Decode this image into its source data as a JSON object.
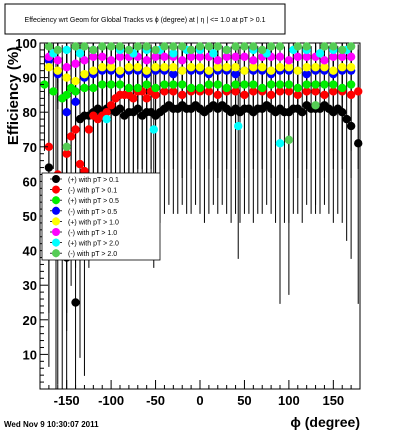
{
  "footer": {
    "timestamp": "Wed Nov  9 10:30:07 2011"
  },
  "chart_data": {
    "type": "scatter",
    "title": "Effeciency wrt Geom for Global Tracks vs ϕ (degree) at |  η | <= 1.0 at pT > 0.1",
    "xlabel": "ϕ (degree)",
    "ylabel": "Efficiency (%)",
    "xlim": [
      -180,
      180
    ],
    "ylim": [
      0,
      100
    ],
    "xticks": [
      -150,
      -100,
      -50,
      0,
      50,
      100,
      150
    ],
    "yticks": [
      10,
      20,
      30,
      40,
      50,
      60,
      70,
      80,
      90,
      100
    ],
    "grid": false,
    "legend_position": "middle-left",
    "series": [
      {
        "name": "(+) with pT > 0.1",
        "color": "#000000",
        "x": [
          -170,
          -162,
          -155,
          -150,
          -140,
          -135,
          -130,
          -125,
          -120,
          -115,
          -110,
          -105,
          -100,
          -95,
          -90,
          -85,
          -80,
          -75,
          -70,
          -65,
          -60,
          -55,
          -50,
          -45,
          -40,
          -35,
          -30,
          -25,
          -20,
          -15,
          -10,
          -5,
          0,
          5,
          10,
          15,
          20,
          25,
          30,
          35,
          40,
          45,
          50,
          55,
          60,
          65,
          70,
          75,
          80,
          85,
          90,
          95,
          100,
          105,
          110,
          115,
          120,
          125,
          130,
          135,
          140,
          145,
          150,
          155,
          160,
          165,
          170,
          178
        ],
        "y": [
          64,
          58,
          50,
          38,
          25,
          78,
          79,
          79,
          80,
          81,
          80,
          81,
          81,
          80,
          81,
          79,
          80,
          80,
          81,
          79,
          80,
          80,
          79,
          80,
          81,
          82,
          81,
          81,
          82,
          81,
          81,
          82,
          81,
          80,
          81,
          82,
          81,
          82,
          81,
          80,
          81,
          80,
          81,
          81,
          80,
          81,
          81,
          82,
          81,
          80,
          81,
          80,
          80,
          81,
          81,
          80,
          82,
          81,
          81,
          81,
          82,
          81,
          80,
          81,
          80,
          78,
          76,
          71
        ]
      },
      {
        "name": "(-) with pT > 0.1",
        "color": "#ff0000",
        "x": [
          -170,
          -160,
          -150,
          -145,
          -140,
          -135,
          -130,
          -125,
          -120,
          -115,
          -110,
          -105,
          -100,
          -95,
          -90,
          -85,
          -80,
          -75,
          -70,
          -65,
          -60,
          -55,
          -50,
          -40,
          -30,
          -20,
          -10,
          0,
          10,
          20,
          30,
          40,
          50,
          60,
          70,
          80,
          90,
          100,
          110,
          120,
          130,
          140,
          150,
          160,
          170,
          178
        ],
        "y": [
          70,
          62,
          68,
          73,
          75,
          65,
          63,
          75,
          79,
          78,
          79,
          80,
          82,
          84,
          85,
          85,
          85,
          84,
          86,
          86,
          84,
          86,
          85,
          86,
          86,
          85,
          86,
          86,
          86,
          85,
          86,
          86,
          85,
          86,
          86,
          85,
          86,
          86,
          85,
          86,
          86,
          85,
          86,
          86,
          85,
          86
        ]
      },
      {
        "name": "(+) with pT > 0.5",
        "color": "#00ee00",
        "x": [
          -175,
          -165,
          -155,
          -150,
          -145,
          -140,
          -130,
          -120,
          -110,
          -100,
          -90,
          -80,
          -70,
          -60,
          -50,
          -40,
          -30,
          -20,
          -10,
          0,
          10,
          20,
          30,
          40,
          50,
          60,
          70,
          80,
          90,
          100,
          110,
          120,
          130,
          140,
          150,
          160,
          170
        ],
        "y": [
          88,
          86,
          84,
          85,
          87,
          86,
          87,
          87,
          88,
          88,
          88,
          87,
          87,
          88,
          87,
          88,
          88,
          88,
          87,
          87,
          88,
          88,
          87,
          88,
          88,
          88,
          87,
          88,
          88,
          88,
          87,
          88,
          88,
          88,
          88,
          87,
          88
        ]
      },
      {
        "name": "(-) with pT > 0.5",
        "color": "#0000ff",
        "x": [
          -170,
          -160,
          -150,
          -140,
          -130,
          -120,
          -110,
          -100,
          -90,
          -80,
          -70,
          -60,
          -50,
          -40,
          -30,
          -20,
          -10,
          0,
          10,
          20,
          30,
          40,
          50,
          60,
          70,
          80,
          90,
          100,
          110,
          120,
          130,
          140,
          150,
          160,
          170
        ],
        "y": [
          95,
          91,
          80,
          83,
          90,
          91,
          92,
          92,
          91,
          92,
          92,
          91,
          92,
          92,
          91,
          92,
          92,
          92,
          91,
          92,
          92,
          91,
          92,
          92,
          92,
          91,
          92,
          92,
          92,
          91,
          92,
          92,
          91,
          92,
          92
        ]
      },
      {
        "name": "(+) with pT > 1.0",
        "color": "#ffff00",
        "x": [
          -170,
          -160,
          -150,
          -140,
          -130,
          -120,
          -110,
          -100,
          -90,
          -80,
          -70,
          -60,
          -50,
          -40,
          -30,
          -20,
          -10,
          0,
          10,
          20,
          30,
          40,
          50,
          60,
          70,
          80,
          90,
          100,
          110,
          120,
          130,
          140,
          150,
          160,
          170
        ],
        "y": [
          93,
          92,
          90,
          89,
          91,
          92,
          93,
          93,
          92,
          93,
          93,
          92,
          93,
          93,
          93,
          92,
          93,
          93,
          92,
          93,
          93,
          93,
          92,
          93,
          93,
          92,
          93,
          93,
          92,
          93,
          93,
          93,
          92,
          93,
          93
        ]
      },
      {
        "name": "(-) with pT > 1.0",
        "color": "#ff00ff",
        "x": [
          -170,
          -160,
          -150,
          -140,
          -130,
          -120,
          -110,
          -100,
          -90,
          -80,
          -70,
          -60,
          -50,
          -40,
          -30,
          -20,
          -10,
          0,
          10,
          20,
          30,
          40,
          50,
          60,
          70,
          80,
          90,
          100,
          110,
          120,
          130,
          140,
          150,
          160,
          170
        ],
        "y": [
          96,
          95,
          93,
          94,
          95,
          96,
          96,
          95,
          96,
          96,
          96,
          95,
          96,
          96,
          96,
          95,
          96,
          96,
          96,
          95,
          96,
          96,
          96,
          95,
          96,
          96,
          96,
          95,
          96,
          96,
          96,
          95,
          96,
          96,
          96
        ]
      },
      {
        "name": "(+) with pT > 2.0",
        "color": "#00ffff",
        "x": [
          -165,
          -150,
          -135,
          -120,
          -105,
          -90,
          -75,
          -60,
          -52,
          -45,
          -30,
          -15,
          0,
          15,
          30,
          43,
          60,
          75,
          90,
          105,
          120,
          135,
          150,
          165
        ],
        "y": [
          97,
          98,
          97,
          98,
          78,
          98,
          97,
          98,
          75,
          98,
          97,
          98,
          98,
          97,
          98,
          76,
          98,
          97,
          71,
          98,
          98,
          97,
          98,
          98
        ]
      },
      {
        "name": "(-) with pT > 2.0",
        "color": "#55cc55",
        "x": [
          -170,
          -160,
          -150,
          -140,
          -130,
          -120,
          -110,
          -100,
          -90,
          -80,
          -70,
          -60,
          -50,
          -40,
          -30,
          -20,
          -10,
          0,
          10,
          20,
          30,
          40,
          50,
          60,
          70,
          80,
          90,
          100,
          110,
          120,
          130,
          140,
          150,
          160,
          170
        ],
        "y": [
          99,
          98,
          70,
          99,
          99,
          98,
          99,
          99,
          99,
          98,
          99,
          99,
          98,
          99,
          99,
          99,
          98,
          99,
          99,
          99,
          98,
          99,
          99,
          99,
          98,
          99,
          99,
          72,
          99,
          99,
          82,
          99,
          99,
          98,
          99
        ]
      }
    ]
  }
}
